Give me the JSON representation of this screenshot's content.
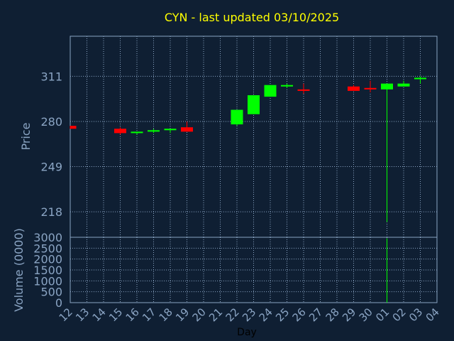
{
  "chart_data": [
    {
      "type": "candlestick",
      "title": "CYN - last updated 03/10/2025",
      "ylabel": "Price",
      "xlabel": "Day",
      "ylim": [
        200.5,
        338.5
      ],
      "yticks": [
        218,
        249,
        280,
        311
      ],
      "grid": true,
      "categories": [
        "12",
        "13",
        "14",
        "15",
        "16",
        "17",
        "18",
        "19",
        "20",
        "21",
        "22",
        "23",
        "24",
        "25",
        "26",
        "27",
        "28",
        "29",
        "30",
        "01",
        "02",
        "03",
        "04"
      ],
      "up_color": "#00ff00",
      "down_color": "#ff0000",
      "candles": [
        {
          "day": "12",
          "open": 277,
          "close": 275,
          "high": 277,
          "low": 275
        },
        {
          "day": "15",
          "open": 275,
          "close": 272,
          "high": 276,
          "low": 271
        },
        {
          "day": "16",
          "open": 272,
          "close": 273,
          "high": 273,
          "low": 271
        },
        {
          "day": "17",
          "open": 273,
          "close": 274,
          "high": 275,
          "low": 272
        },
        {
          "day": "18",
          "open": 274,
          "close": 275,
          "high": 275,
          "low": 272
        },
        {
          "day": "19",
          "open": 276,
          "close": 273,
          "high": 280,
          "low": 273
        },
        {
          "day": "22",
          "open": 278,
          "close": 288,
          "high": 288,
          "low": 277
        },
        {
          "day": "23",
          "open": 285,
          "close": 298,
          "high": 298,
          "low": 285
        },
        {
          "day": "24",
          "open": 297,
          "close": 305,
          "high": 305,
          "low": 297
        },
        {
          "day": "25",
          "open": 304,
          "close": 305,
          "high": 306,
          "low": 303
        },
        {
          "day": "26",
          "open": 302,
          "close": 301,
          "high": 306,
          "low": 299
        },
        {
          "day": "29",
          "open": 304,
          "close": 301,
          "high": 305,
          "low": 301
        },
        {
          "day": "30",
          "open": 303,
          "close": 302,
          "high": 308,
          "low": 300
        },
        {
          "day": "01",
          "open": 302,
          "close": 306,
          "high": 306,
          "low": 211
        },
        {
          "day": "02",
          "open": 304,
          "close": 306,
          "high": 308,
          "low": 304
        },
        {
          "day": "03",
          "open": 309,
          "close": 310,
          "high": 311,
          "low": 306
        }
      ]
    },
    {
      "type": "bar",
      "ylabel": "Volume (0000)",
      "xlabel": "Day",
      "ylim": [
        0,
        3000
      ],
      "yticks": [
        0,
        500,
        1000,
        1500,
        2000,
        2500,
        3000
      ],
      "grid": true,
      "categories": [
        "12",
        "13",
        "14",
        "15",
        "16",
        "17",
        "18",
        "19",
        "20",
        "21",
        "22",
        "23",
        "24",
        "25",
        "26",
        "27",
        "28",
        "29",
        "30",
        "01",
        "02",
        "03",
        "04"
      ],
      "color": "#00ff00",
      "values": [
        {
          "day": "01",
          "volume": 2950
        }
      ]
    }
  ]
}
